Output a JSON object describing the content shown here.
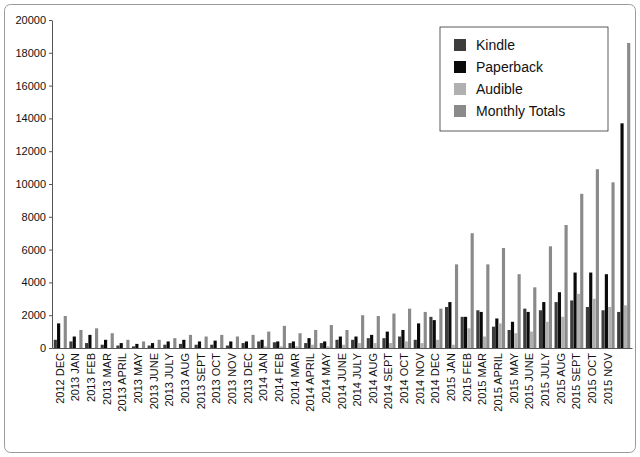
{
  "chart_data": {
    "type": "bar",
    "categories": [
      "2012 DEC",
      "2013 JAN",
      "2013 FEB",
      "2013 MAR",
      "2013 APRIL",
      "2013 MAY",
      "2013 JUNE",
      "2013 JULY",
      "2013 AUG",
      "2013 SEPT",
      "2013 OCT",
      "2013 NOV",
      "2013 DEC",
      "2014 JAN",
      "2014 FEB",
      "2014 MAR",
      "2014 APRIL",
      "2014 MAY",
      "2014 JUNE",
      "2014 JULY",
      "2014 AUG",
      "2014 SEPT",
      "2014 OCT",
      "2014 NOV",
      "2014 DEC",
      "2015 JAN",
      "2015 FEB",
      "2015 MAR",
      "2015 APRIL",
      "2015 MAY",
      "2015 JUNE",
      "2015 JULY",
      "2015 AUG",
      "2015 SEPT",
      "2015 OCT",
      "2015 NOV",
      null
    ],
    "series": [
      {
        "name": "Kindle",
        "color": "#3d3d3d",
        "values": [
          500,
          400,
          300,
          200,
          150,
          100,
          150,
          200,
          250,
          200,
          200,
          150,
          300,
          400,
          350,
          300,
          300,
          300,
          500,
          500,
          600,
          600,
          700,
          500,
          1900,
          2500,
          1900,
          2300,
          1300,
          1100,
          2400,
          2300,
          2800,
          2900,
          2500,
          2300,
          2200
        ]
      },
      {
        "name": "Paperback",
        "color": "#0a0a0a",
        "values": [
          1500,
          700,
          800,
          500,
          300,
          250,
          300,
          400,
          500,
          400,
          450,
          400,
          400,
          500,
          400,
          400,
          600,
          400,
          700,
          700,
          800,
          1000,
          1100,
          1500,
          1700,
          2800,
          1900,
          2200,
          1800,
          1600,
          2200,
          2800,
          3400,
          4600,
          4600,
          4500,
          13700
        ]
      },
      {
        "name": "Audible",
        "color": "#b0b0b0",
        "values": [
          0,
          0,
          0,
          0,
          0,
          0,
          0,
          0,
          0,
          0,
          0,
          0,
          0,
          100,
          100,
          100,
          200,
          100,
          200,
          300,
          300,
          300,
          400,
          300,
          500,
          200,
          1200,
          700,
          1500,
          900,
          1000,
          1600,
          1900,
          3300,
          3000,
          2500,
          2600
        ]
      },
      {
        "name": "Monthly Totals",
        "color": "#8a8a8a",
        "values": [
          1950,
          1100,
          1200,
          900,
          500,
          400,
          500,
          600,
          800,
          700,
          800,
          700,
          800,
          1000,
          1350,
          900,
          1100,
          1400,
          1100,
          2000,
          1950,
          2100,
          2400,
          2200,
          2400,
          5100,
          7000,
          5100,
          6100,
          4500,
          3700,
          6200,
          7500,
          9400,
          10900,
          10100,
          18600
        ]
      }
    ],
    "ylim": [
      0,
      20000
    ],
    "yticks": [
      0,
      2000,
      4000,
      6000,
      8000,
      10000,
      12000,
      14000,
      16000,
      18000,
      20000
    ],
    "legend": "top-right"
  }
}
